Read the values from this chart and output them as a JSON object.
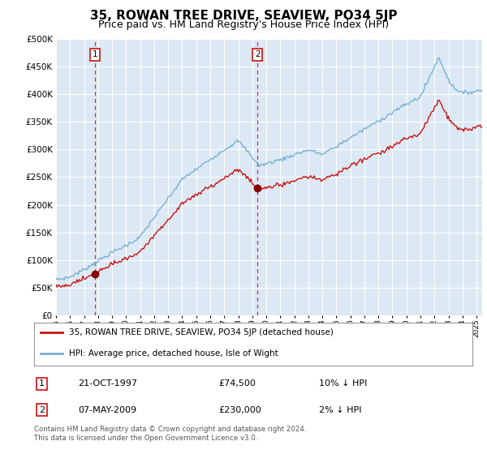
{
  "title": "35, ROWAN TREE DRIVE, SEAVIEW, PO34 5JP",
  "subtitle": "Price paid vs. HM Land Registry's House Price Index (HPI)",
  "hpi_label": "HPI: Average price, detached house, Isle of Wight",
  "property_label": "35, ROWAN TREE DRIVE, SEAVIEW, PO34 5JP (detached house)",
  "sale1_date": "21-OCT-1997",
  "sale1_price": 74500,
  "sale1_note": "10% ↓ HPI",
  "sale2_date": "07-MAY-2009",
  "sale2_price": 230000,
  "sale2_note": "2% ↓ HPI",
  "footer": "Contains HM Land Registry data © Crown copyright and database right 2024.\nThis data is licensed under the Open Government Licence v3.0.",
  "ylim": [
    0,
    500000
  ],
  "yticks": [
    0,
    50000,
    100000,
    150000,
    200000,
    250000,
    300000,
    350000,
    400000,
    450000,
    500000
  ],
  "bg_color": "#dce9f5",
  "grid_color": "#ffffff",
  "hpi_color": "#7ab0d4",
  "price_color": "#cc1111",
  "marker_color": "#880000",
  "vline_color": "#cc1111",
  "title_fontsize": 11,
  "subtitle_fontsize": 9,
  "sale1_year_decimal": 1997.8,
  "sale2_year_decimal": 2009.37
}
